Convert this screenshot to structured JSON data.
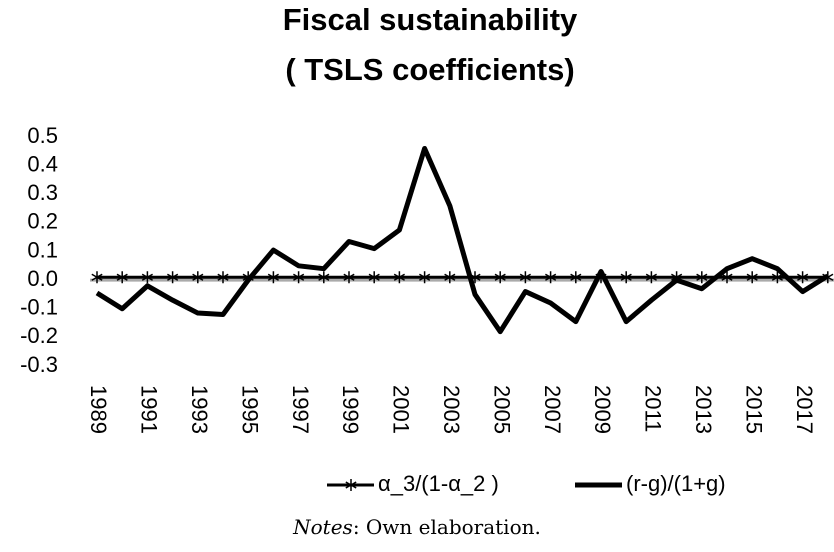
{
  "chart_data": {
    "type": "line",
    "title": [
      "Fiscal sustainability",
      "( TSLS coefficients)"
    ],
    "categories": [
      "1989",
      null,
      "1991",
      null,
      "1993",
      null,
      "1995",
      null,
      "1997",
      null,
      "1999",
      null,
      "2001",
      null,
      "2003",
      null,
      "2005",
      null,
      "2007",
      null,
      "2009",
      null,
      "2011",
      null,
      "2013",
      null,
      "2015",
      null,
      "2017",
      null
    ],
    "series": [
      {
        "name": "α_3/(1-α_2 )",
        "color": "#000000",
        "marker": "asterisk",
        "values": [
          0.01,
          0.01,
          0.01,
          0.01,
          0.01,
          0.01,
          0.01,
          0.01,
          0.01,
          0.01,
          0.01,
          0.01,
          0.01,
          0.01,
          0.01,
          0.01,
          0.01,
          0.01,
          0.01,
          0.01,
          0.01,
          0.01,
          0.01,
          0.01,
          0.01,
          0.01,
          0.01,
          0.01,
          0.01,
          0.01
        ]
      },
      {
        "name": "(r-g)/(1+g)",
        "color": "#000000",
        "values": [
          -0.045,
          -0.1,
          -0.02,
          -0.07,
          -0.115,
          -0.12,
          0.0,
          0.105,
          0.05,
          0.04,
          0.135,
          0.11,
          0.175,
          0.46,
          0.26,
          -0.05,
          -0.18,
          -0.04,
          -0.08,
          -0.145,
          0.03,
          -0.145,
          -0.07,
          0.0,
          -0.03,
          0.04,
          0.075,
          0.04,
          -0.04,
          0.015
        ]
      }
    ],
    "ylim": [
      -0.3,
      0.5
    ],
    "yticks": [
      -0.3,
      -0.2,
      -0.1,
      {
        "value": 0,
        "label": "0.0"
      },
      0.1,
      0.2,
      0.3,
      0.4,
      0.5
    ],
    "notes_label": "Notes",
    "notes": ": Own elaboration."
  }
}
